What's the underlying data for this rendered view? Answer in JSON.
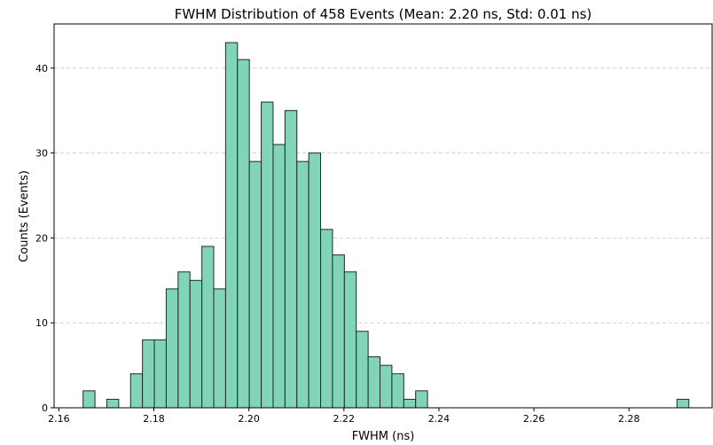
{
  "chart_data": {
    "type": "bar",
    "title": "FWHM Distribution of 458 Events (Mean: 2.20 ns, Std: 0.01 ns)",
    "xlabel": "FWHM (ns)",
    "ylabel": "Counts (Events)",
    "xlim": [
      2.159,
      2.2975
    ],
    "ylim": [
      0,
      45.2
    ],
    "bin_width": 0.0025,
    "first_bin_left": 2.1651,
    "counts": [
      2,
      0,
      1,
      0,
      4,
      8,
      8,
      14,
      16,
      15,
      19,
      14,
      43,
      41,
      29,
      36,
      31,
      35,
      29,
      30,
      21,
      18,
      16,
      9,
      6,
      5,
      4,
      1,
      2,
      0,
      0,
      0,
      0,
      0,
      0,
      0,
      0,
      0,
      0,
      0,
      0,
      0,
      0,
      0,
      0,
      0,
      0,
      0,
      0,
      0,
      1
    ],
    "x_ticks": [
      "2.16",
      "2.18",
      "2.20",
      "2.22",
      "2.24",
      "2.26",
      "2.28"
    ],
    "x_tick_values": [
      2.16,
      2.18,
      2.2,
      2.22,
      2.24,
      2.26,
      2.28
    ],
    "y_ticks": [
      "0",
      "10",
      "20",
      "30",
      "40"
    ],
    "y_tick_values": [
      0,
      10,
      20,
      30,
      40
    ],
    "grid": "y-dashed",
    "bar_color": "#82d4b8",
    "edge_color": "#1f2b26"
  }
}
